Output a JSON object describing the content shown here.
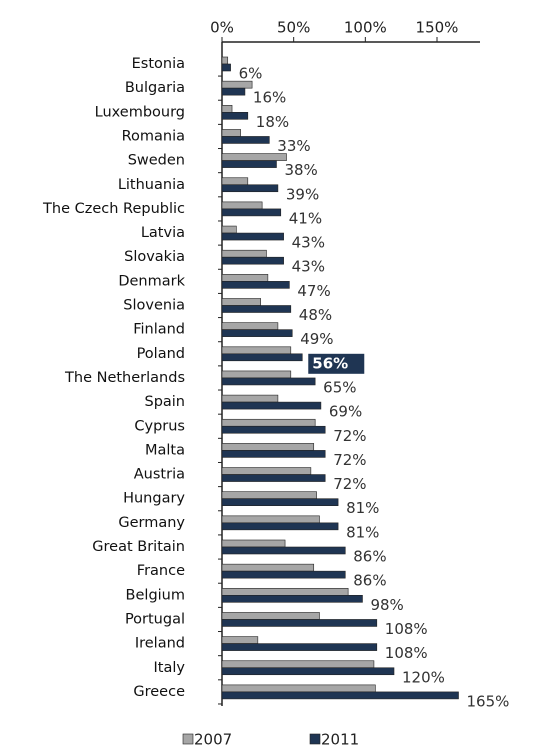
{
  "chart_data": {
    "type": "bar",
    "orientation": "horizontal",
    "categories": [
      "Estonia",
      "Bulgaria",
      "Luxembourg",
      "Romania",
      "Sweden",
      "Lithuania",
      "The Czech Republic",
      "Latvia",
      "Slovakia",
      "Denmark",
      "Slovenia",
      "Finland",
      "Poland",
      "The Netherlands",
      "Spain",
      "Cyprus",
      "Malta",
      "Austria",
      "Hungary",
      "Germany",
      "Great Britain",
      "France",
      "Belgium",
      "Portugal",
      "Ireland",
      "Italy",
      "Greece"
    ],
    "series": [
      {
        "name": "2007",
        "color": "#a6a6a6",
        "values": [
          4,
          21,
          7,
          13,
          45,
          18,
          28,
          10,
          31,
          32,
          27,
          39,
          48,
          48,
          39,
          65,
          64,
          62,
          66,
          68,
          44,
          64,
          88,
          68,
          25,
          106,
          107
        ]
      },
      {
        "name": "2011",
        "color": "#1f3553",
        "values": [
          6,
          16,
          18,
          33,
          38,
          39,
          41,
          43,
          43,
          47,
          48,
          49,
          56,
          65,
          69,
          72,
          72,
          72,
          81,
          81,
          86,
          86,
          98,
          108,
          108,
          120,
          165
        ],
        "value_labels": [
          "6%",
          "16%",
          "18%",
          "33%",
          "38%",
          "39%",
          "41%",
          "43%",
          "43%",
          "47%",
          "48%",
          "49%",
          "56%",
          "65%",
          "69%",
          "72%",
          "72%",
          "72%",
          "81%",
          "81%",
          "86%",
          "86%",
          "98%",
          "108%",
          "108%",
          "120%",
          "165%"
        ]
      }
    ],
    "highlight": "Poland",
    "xlim": [
      0,
      180
    ],
    "xticks": [
      {
        "value": 0,
        "label": "0%"
      },
      {
        "value": 50,
        "label": "50%"
      },
      {
        "value": 100,
        "label": "100%"
      },
      {
        "value": 150,
        "label": "150%"
      }
    ],
    "legend": "bottom"
  }
}
